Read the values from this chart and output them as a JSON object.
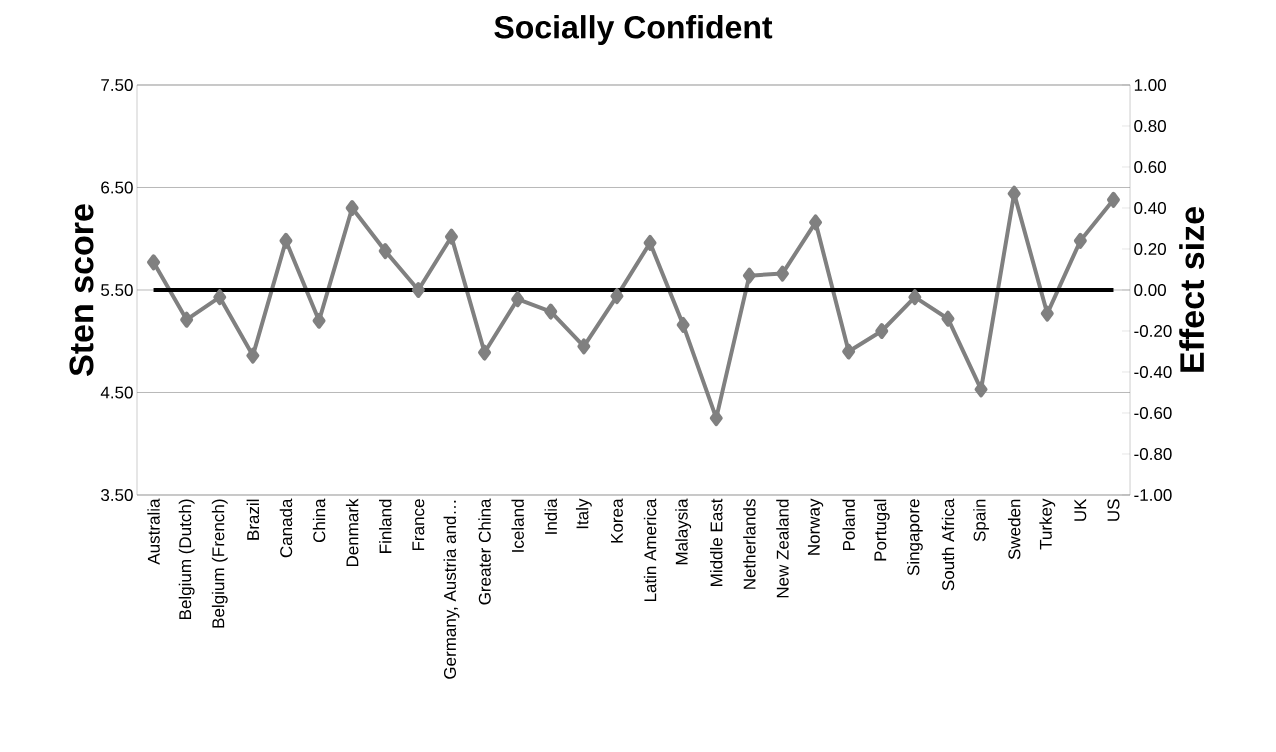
{
  "chart_data": {
    "type": "line",
    "title": "Socially Confident",
    "ylabel": "Sten score",
    "y2label": "Effect size",
    "categories": [
      "Australia",
      "Belgium (Dutch)",
      "Belgium (French)",
      "Brazil",
      "Canada",
      "China",
      "Denmark",
      "Finland",
      "France",
      "Germany, Austria and…",
      "Greater China",
      "Iceland",
      "India",
      "Italy",
      "Korea",
      "Latin America",
      "Malaysia",
      "Middle East",
      "Netherlands",
      "New Zealand",
      "Norway",
      "Poland",
      "Portugal",
      "Singapore",
      "South Africa",
      "Spain",
      "Sweden",
      "Turkey",
      "UK",
      "US"
    ],
    "series": [
      {
        "color": "#808080",
        "values": [
          5.77,
          5.21,
          5.43,
          4.86,
          5.98,
          5.2,
          6.3,
          5.88,
          5.5,
          6.02,
          4.89,
          5.41,
          5.29,
          4.95,
          5.44,
          5.96,
          5.16,
          4.25,
          5.64,
          5.66,
          6.16,
          4.9,
          5.1,
          5.43,
          5.22,
          4.53,
          6.44,
          5.27,
          5.98,
          6.38
        ]
      }
    ],
    "ylim": [
      3.5,
      7.5
    ],
    "yticks": [
      {
        "value": 3.5,
        "label": "3.50"
      },
      {
        "value": 4.5,
        "label": "4.50"
      },
      {
        "value": 5.5,
        "label": "5.50"
      },
      {
        "value": 6.5,
        "label": "6.50"
      },
      {
        "value": 7.5,
        "label": "7.50"
      }
    ],
    "y2lim": [
      -1,
      1
    ],
    "y2ticks": [
      {
        "value": -1,
        "label": "-1.00"
      },
      {
        "value": -0.8,
        "label": "-0.80"
      },
      {
        "value": -0.6,
        "label": "-0.60"
      },
      {
        "value": -0.4,
        "label": "-0.40"
      },
      {
        "value": -0.2,
        "label": "-0.20"
      },
      {
        "value": 0,
        "label": "0.00"
      },
      {
        "value": 0.2,
        "label": "0.20"
      },
      {
        "value": 0.4,
        "label": "0.40"
      },
      {
        "value": 0.6,
        "label": "0.60"
      },
      {
        "value": 0.8,
        "label": "0.80"
      },
      {
        "value": 1,
        "label": "1.00"
      }
    ],
    "ref_lines": [
      {
        "axis": "y",
        "value": 5.5,
        "color": "#000000"
      }
    ],
    "grid": "y",
    "marker": "diamond",
    "line_style": "solid"
  }
}
